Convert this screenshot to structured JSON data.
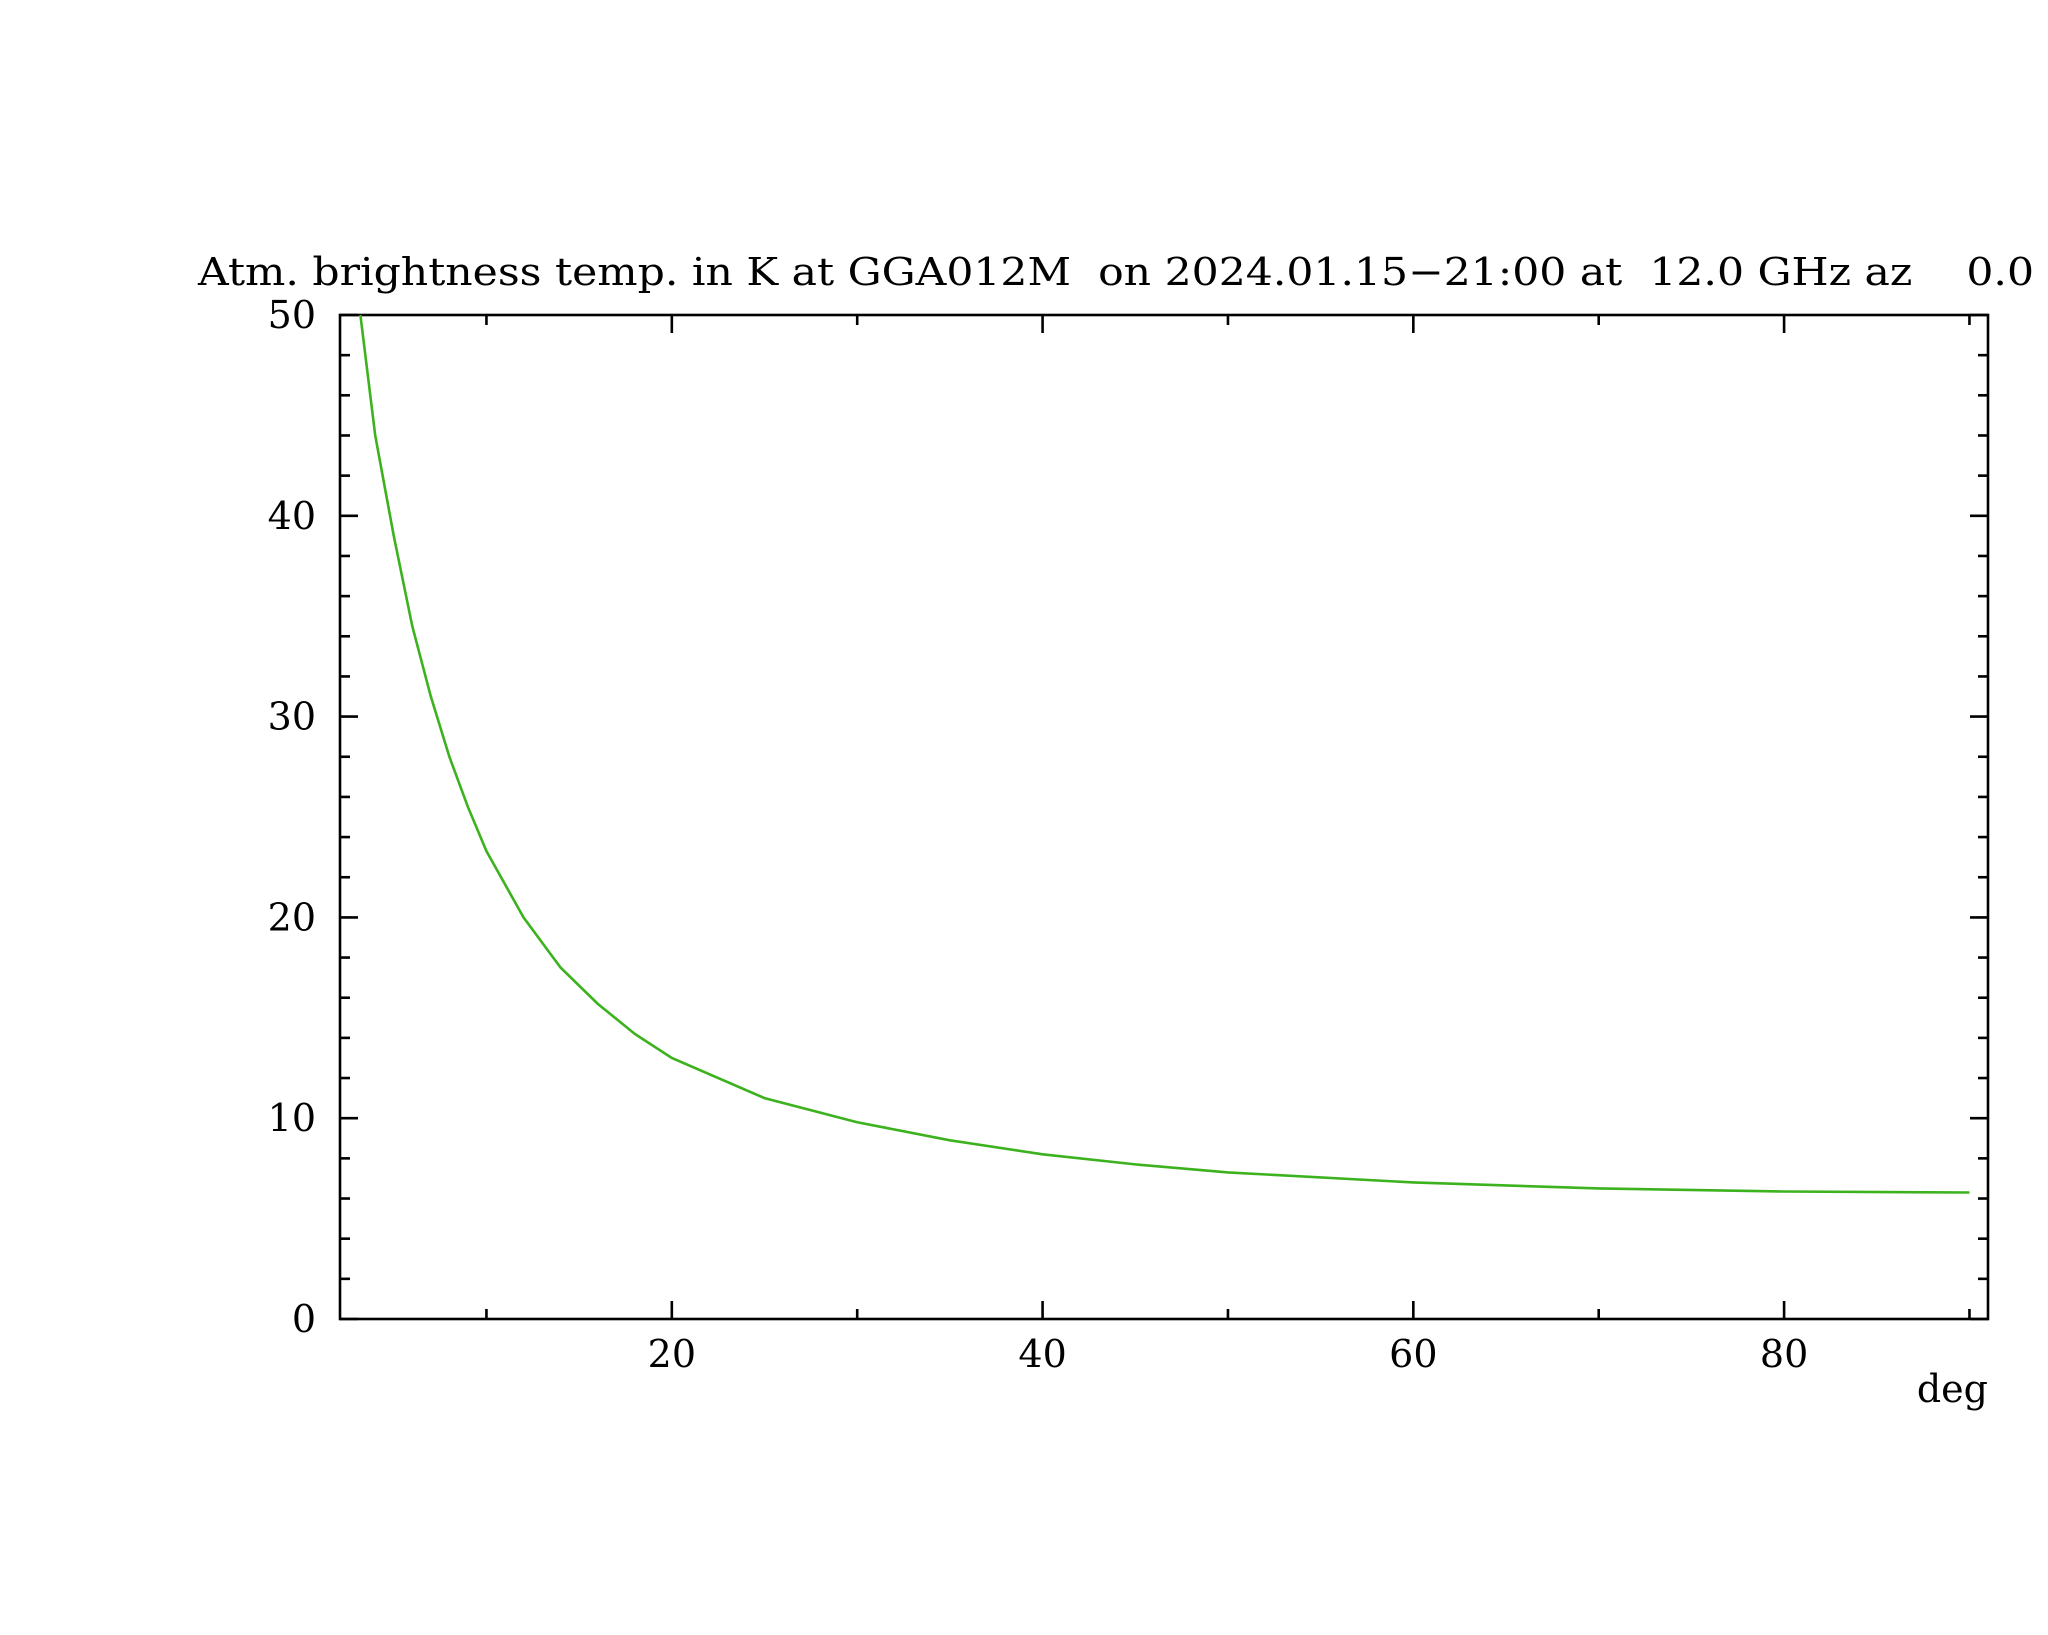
{
  "chart_data": {
    "type": "line",
    "title": "Atm. brightness temp. in K at GGA012M  on 2024.01.15−21:00 at  12.0 GHz az    0.0",
    "x_label": "deg",
    "series": [
      {
        "color": "#3cb21e",
        "x": [
          3.2,
          4,
          5,
          6,
          7,
          8,
          9,
          10,
          12,
          14,
          16,
          18,
          20,
          25,
          30,
          35,
          40,
          45,
          50,
          60,
          70,
          80,
          90
        ],
        "values": [
          50,
          44,
          39,
          34.5,
          31,
          28,
          25.5,
          23.3,
          20,
          17.5,
          15.7,
          14.2,
          13.0,
          11.0,
          9.8,
          8.9,
          8.2,
          7.7,
          7.3,
          6.8,
          6.5,
          6.35,
          6.3
        ]
      }
    ],
    "xlim": [
      2.1,
      91
    ],
    "ylim": [
      0,
      50
    ],
    "xticks": [
      20,
      40,
      60,
      80
    ],
    "xminorticks": [
      10,
      30,
      50,
      70,
      90
    ],
    "yticks": [
      0,
      10,
      20,
      30,
      40,
      50
    ],
    "yminorticks": [
      2,
      4,
      6,
      8,
      12,
      14,
      16,
      18,
      22,
      24,
      26,
      28,
      32,
      34,
      36,
      38,
      42,
      44,
      46,
      48
    ]
  }
}
